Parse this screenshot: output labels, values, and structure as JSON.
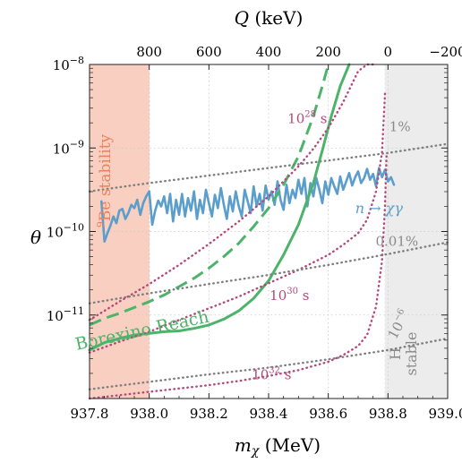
{
  "chart_data": {
    "type": "line",
    "xlabel_main": "m",
    "xlabel_sub": "χ",
    "xlabel_unit": " (MeV)",
    "xlabel_top_main": "Q",
    "xlabel_top_unit": " (keV)",
    "ylabel": "θ",
    "xlim": [
      937.8,
      939.0
    ],
    "ylim_log10": [
      -12,
      -8
    ],
    "grid": "dotted",
    "x_ticks": [
      937.8,
      938.0,
      938.2,
      938.4,
      938.6,
      938.8,
      939.0
    ],
    "x_tick_labels": [
      "937.8",
      "938.0",
      "938.2",
      "938.4",
      "938.6",
      "938.8",
      "939.0"
    ],
    "y_ticks": [
      {
        "exp": -8,
        "label_base": "10",
        "label_exp": "−8"
      },
      {
        "exp": -9,
        "label_base": "10",
        "label_exp": "−9"
      },
      {
        "exp": -10,
        "label_base": "10",
        "label_exp": "−10"
      },
      {
        "exp": -11,
        "label_base": "10",
        "label_exp": "−11"
      }
    ],
    "top_ticks_mass": [
      938.0,
      938.2,
      938.4,
      938.6,
      938.8,
      939.0
    ],
    "top_tick_labels": [
      "800",
      "600",
      "400",
      "200",
      "0",
      "−200"
    ],
    "regions": [
      {
        "name": "Be stability",
        "sup": "9",
        "rest": "Be stability",
        "x": [
          937.8,
          938.0
        ],
        "color": "#f8cfc0",
        "text_color": "#e8835d"
      },
      {
        "name": "H stable",
        "line1": "H",
        "line2": "stable",
        "x": [
          938.79,
          939.0
        ],
        "color": "#ececec",
        "text_color": "#8a8a8a"
      }
    ],
    "series": [
      {
        "label": "n → χγ",
        "color": "#5b9ecb",
        "x": [
          937.84,
          937.85,
          937.86,
          937.87,
          937.88,
          937.89,
          937.9,
          937.91,
          937.92,
          937.93,
          937.94,
          937.95,
          937.96,
          937.97,
          937.98,
          937.99,
          938.0,
          938.01,
          938.02,
          938.03,
          938.04,
          938.05,
          938.06,
          938.07,
          938.08,
          938.09,
          938.1,
          938.11,
          938.12,
          938.13,
          938.14,
          938.15,
          938.16,
          938.17,
          938.18,
          938.19,
          938.2,
          938.21,
          938.22,
          938.23,
          938.24,
          938.25,
          938.26,
          938.27,
          938.28,
          938.29,
          938.3,
          938.31,
          938.32,
          938.33,
          938.34,
          938.35,
          938.36,
          938.37,
          938.38,
          938.39,
          938.4,
          938.41,
          938.42,
          938.43,
          938.44,
          938.45,
          938.46,
          938.47,
          938.48,
          938.49,
          938.5,
          938.51,
          938.52,
          938.53,
          938.54,
          938.55,
          938.56,
          938.57,
          938.58,
          938.59,
          938.6,
          938.61,
          938.62,
          938.63,
          938.64,
          938.65,
          938.66,
          938.67,
          938.68,
          938.69,
          938.7,
          938.71,
          938.72,
          938.73,
          938.74,
          938.75,
          938.76,
          938.77,
          938.78,
          938.79,
          938.8,
          938.81,
          938.82
        ],
        "log10y": [
          -9.64,
          -10.12,
          -10.02,
          -9.93,
          -9.82,
          -9.9,
          -9.75,
          -9.73,
          -9.85,
          -9.78,
          -9.68,
          -9.72,
          -9.62,
          -9.8,
          -9.66,
          -9.58,
          -9.52,
          -9.92,
          -9.75,
          -9.63,
          -9.7,
          -9.58,
          -9.78,
          -9.55,
          -9.88,
          -9.62,
          -9.8,
          -9.55,
          -9.82,
          -9.6,
          -9.75,
          -9.52,
          -9.85,
          -9.62,
          -9.78,
          -9.5,
          -9.66,
          -9.82,
          -9.56,
          -9.72,
          -9.48,
          -9.68,
          -9.85,
          -9.58,
          -9.76,
          -9.52,
          -9.7,
          -9.82,
          -9.5,
          -9.64,
          -9.78,
          -9.46,
          -9.7,
          -9.55,
          -9.75,
          -9.45,
          -9.62,
          -9.52,
          -9.68,
          -9.4,
          -9.62,
          -9.74,
          -9.44,
          -9.66,
          -9.5,
          -9.6,
          -9.38,
          -9.55,
          -9.36,
          -9.7,
          -9.42,
          -9.58,
          -9.36,
          -9.5,
          -9.66,
          -9.4,
          -9.56,
          -9.36,
          -9.46,
          -9.55,
          -9.34,
          -9.5,
          -9.4,
          -9.3,
          -9.45,
          -9.35,
          -9.28,
          -9.42,
          -9.36,
          -9.25,
          -9.38,
          -9.31,
          -9.46,
          -9.24,
          -9.35,
          -9.26,
          -9.4,
          -9.35,
          -9.44
        ]
      },
      {
        "label": "Borexino Reach",
        "color": "#4cb36a",
        "x": [
          937.8,
          937.85,
          937.9,
          937.95,
          938.0,
          938.05,
          938.1,
          938.15,
          938.2,
          938.25,
          938.3,
          938.35,
          938.4,
          938.45,
          938.5,
          938.55,
          938.58,
          938.61,
          938.64,
          938.67
        ],
        "log10y": [
          -11.42,
          -11.33,
          -11.28,
          -11.24,
          -11.22,
          -11.2,
          -11.19,
          -11.16,
          -11.12,
          -11.05,
          -10.95,
          -10.8,
          -10.59,
          -10.28,
          -9.92,
          -9.42,
          -9.03,
          -8.62,
          -8.26,
          -8.0
        ]
      },
      {
        "label": "Borexino dashed",
        "color": "#4cb36a",
        "dashed": true,
        "x": [
          937.8,
          937.85,
          937.9,
          937.95,
          938.0,
          938.05,
          938.1,
          938.15,
          938.2,
          938.25,
          938.3,
          938.35,
          938.4,
          938.45,
          938.5,
          938.55,
          938.58,
          938.6
        ],
        "log10y": [
          -11.12,
          -11.04,
          -10.98,
          -10.91,
          -10.84,
          -10.76,
          -10.66,
          -10.56,
          -10.44,
          -10.3,
          -10.14,
          -9.94,
          -9.72,
          -9.44,
          -9.1,
          -8.62,
          -8.26,
          -8.0
        ]
      },
      {
        "label": "10^28 s",
        "color": "#b5487a",
        "dotted": true,
        "x": [
          937.8,
          937.9,
          938.0,
          938.1,
          938.2,
          938.3,
          938.4,
          938.5,
          938.55,
          938.6,
          938.65,
          938.7,
          938.73,
          938.75
        ],
        "log10y": [
          -11.06,
          -10.84,
          -10.63,
          -10.4,
          -10.15,
          -9.88,
          -9.58,
          -9.22,
          -9.01,
          -8.76,
          -8.45,
          -8.08,
          -8.0,
          -8.0
        ]
      },
      {
        "label": "10^30 s",
        "color": "#b5487a",
        "dotted": true,
        "x": [
          937.8,
          937.9,
          938.0,
          938.1,
          938.2,
          938.3,
          938.4,
          938.5,
          938.6,
          938.65,
          938.7,
          938.73,
          938.76,
          938.78,
          938.79
        ],
        "log10y": [
          -11.45,
          -11.32,
          -11.2,
          -11.06,
          -10.92,
          -10.78,
          -10.62,
          -10.46,
          -10.28,
          -10.16,
          -10.02,
          -9.86,
          -9.52,
          -9.05,
          -8.35
        ]
      },
      {
        "label": "10^32 s",
        "color": "#b5487a",
        "dotted": true,
        "x": [
          937.8,
          937.9,
          938.0,
          938.1,
          938.2,
          938.3,
          938.4,
          938.5,
          938.6,
          938.65,
          938.7,
          938.73,
          938.76,
          938.78,
          938.79,
          938.795
        ],
        "log10y": [
          -12.0,
          -11.96,
          -11.92,
          -11.88,
          -11.84,
          -11.79,
          -11.73,
          -11.66,
          -11.56,
          -11.48,
          -11.37,
          -11.24,
          -10.9,
          -10.35,
          -9.7,
          -9.1
        ]
      },
      {
        "label": "1%",
        "color": "#7e7e7e",
        "dotted": true,
        "x": [
          937.8,
          938.0,
          938.2,
          938.4,
          938.6,
          938.8,
          939.0
        ],
        "log10y": [
          -9.52,
          -9.42,
          -9.33,
          -9.24,
          -9.15,
          -9.06,
          -8.95
        ]
      },
      {
        "label": "0.01%",
        "color": "#7e7e7e",
        "dotted": true,
        "x": [
          937.8,
          938.0,
          938.2,
          938.4,
          938.6,
          938.8,
          939.0
        ],
        "log10y": [
          -10.86,
          -10.74,
          -10.63,
          -10.52,
          -10.4,
          -10.27,
          -10.13
        ]
      },
      {
        "label": "10^-6",
        "color": "#7e7e7e",
        "dotted": true,
        "x": [
          937.8,
          938.0,
          938.2,
          938.4,
          938.6,
          938.8,
          939.0
        ],
        "log10y": [
          -11.89,
          -11.8,
          -11.71,
          -11.63,
          -11.53,
          -11.42,
          -11.28
        ]
      }
    ],
    "annotations": [
      {
        "key": "a28",
        "base": "10",
        "sup": "28",
        "tail": " s",
        "color": "#b5487a",
        "x": 938.53,
        "log10y": -8.7
      },
      {
        "key": "a30",
        "base": "10",
        "sup": "30",
        "tail": " s",
        "color": "#b5487a",
        "x": 938.47,
        "log10y": -10.82
      },
      {
        "key": "a32",
        "base": "10",
        "sup": "32",
        "tail": " s",
        "color": "#b5487a",
        "x": 938.41,
        "log10y": -11.77
      },
      {
        "key": "a1",
        "text": "1%",
        "color": "#8a8a8a",
        "x": 938.84,
        "log10y": -8.8
      },
      {
        "key": "a001",
        "text": "0.01%",
        "color": "#8a8a8a",
        "x": 938.83,
        "log10y": -10.17
      },
      {
        "key": "a6",
        "base": "10",
        "sup": "−6",
        "tail": "",
        "color": "#8a8a8a",
        "x": 938.85,
        "log10y": -11.14,
        "rotate": -62
      },
      {
        "key": "anx",
        "text": "n → χγ",
        "color": "#5b9ecb",
        "x": 938.77,
        "log10y": -9.78
      },
      {
        "key": "abor",
        "text": "Borexino Reach",
        "color": "#4cb36a",
        "x": 937.98,
        "log10y": -11.25,
        "rotate": -12
      }
    ]
  }
}
